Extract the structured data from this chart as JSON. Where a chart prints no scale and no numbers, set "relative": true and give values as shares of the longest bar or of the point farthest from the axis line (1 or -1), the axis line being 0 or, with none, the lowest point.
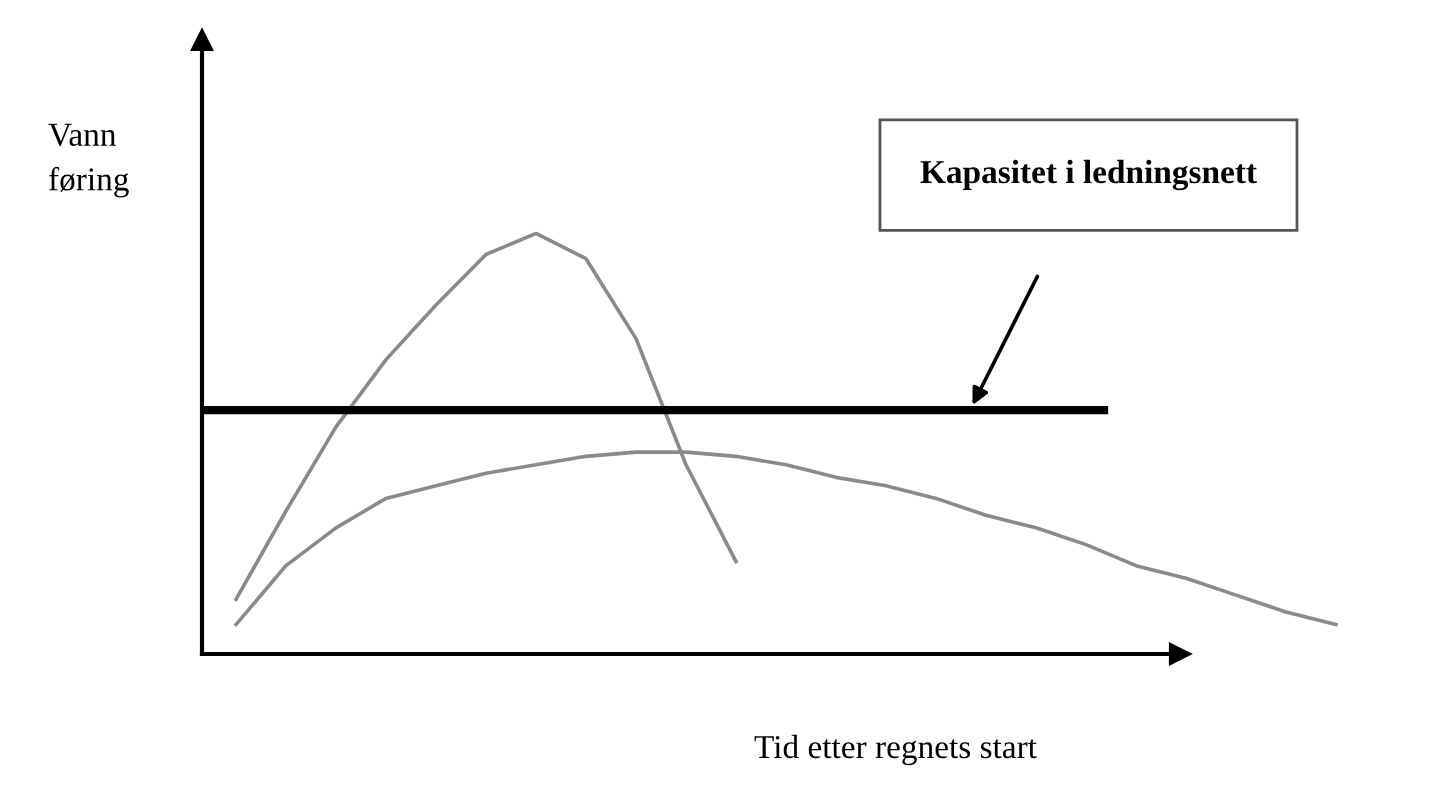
{
  "chart_data": {
    "type": "line",
    "relative": true,
    "xlabel": "Tid etter regnets start",
    "ylabel": "Vann føring",
    "categories": [
      null,
      null,
      null,
      null,
      null,
      null,
      null,
      null,
      null,
      null,
      null,
      null,
      null,
      null,
      null,
      null,
      null,
      null,
      null,
      null,
      null,
      null,
      null
    ],
    "series": [
      {
        "color": "#8a8a8a",
        "values": [
          0.13,
          0.34,
          0.54,
          0.7,
          0.83,
          0.95,
          1.0,
          0.94,
          0.75,
          0.45,
          0.22,
          null,
          null,
          null,
          null,
          null,
          null,
          null,
          null,
          null,
          null,
          null,
          null
        ]
      },
      {
        "color": "#8a8a8a",
        "values": [
          0.07,
          0.21,
          0.3,
          0.37,
          0.4,
          0.43,
          0.45,
          0.47,
          0.48,
          0.48,
          0.47,
          0.45,
          0.42,
          0.4,
          0.37,
          0.33,
          0.3,
          0.26,
          0.21,
          0.18,
          0.14,
          0.1,
          0.07
        ]
      }
    ],
    "ref_lines": [
      {
        "axis": "y",
        "value": 0.58,
        "label": "Kapasitet i ledningsnett",
        "color": "#000000"
      }
    ],
    "legend": false,
    "marker": "none",
    "line_style": "solid"
  }
}
